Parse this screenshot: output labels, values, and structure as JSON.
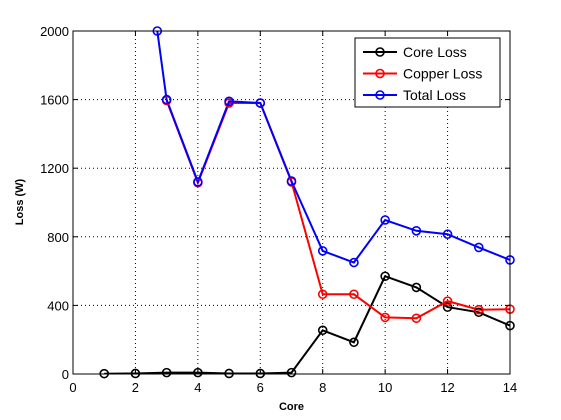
{
  "chart_data": {
    "type": "line",
    "xlabel": "Core",
    "ylabel": "Loss (W)",
    "xlim": [
      0,
      14
    ],
    "ylim": [
      0,
      2000
    ],
    "xticks": [
      0,
      2,
      4,
      6,
      8,
      10,
      12,
      14
    ],
    "yticks": [
      0,
      400,
      800,
      1200,
      1600,
      2000
    ],
    "grid": true,
    "legend_position": "top-right",
    "series": [
      {
        "name": "Core Loss",
        "color": "#000000",
        "x": [
          1,
          2,
          3,
          4,
          5,
          6,
          7,
          8,
          9,
          10,
          11,
          12,
          13,
          14
        ],
        "values": [
          2,
          3,
          8,
          8,
          3,
          3,
          8,
          255,
          185,
          570,
          505,
          390,
          360,
          282
        ]
      },
      {
        "name": "Copper Loss",
        "color": "#ff0000",
        "x": [
          3,
          4,
          5,
          6,
          7,
          8,
          9,
          10,
          11,
          12,
          13,
          14
        ],
        "values": [
          1595,
          1115,
          1580,
          1580,
          1120,
          465,
          465,
          330,
          325,
          425,
          375,
          378
        ]
      },
      {
        "name": "Total Loss",
        "color": "#0000ff",
        "x": [
          2.7,
          3,
          4,
          5,
          6,
          7,
          8,
          9,
          10,
          11,
          12,
          13,
          14
        ],
        "values": [
          2000,
          1600,
          1120,
          1590,
          1580,
          1125,
          718,
          650,
          898,
          835,
          815,
          738,
          665
        ]
      }
    ]
  }
}
